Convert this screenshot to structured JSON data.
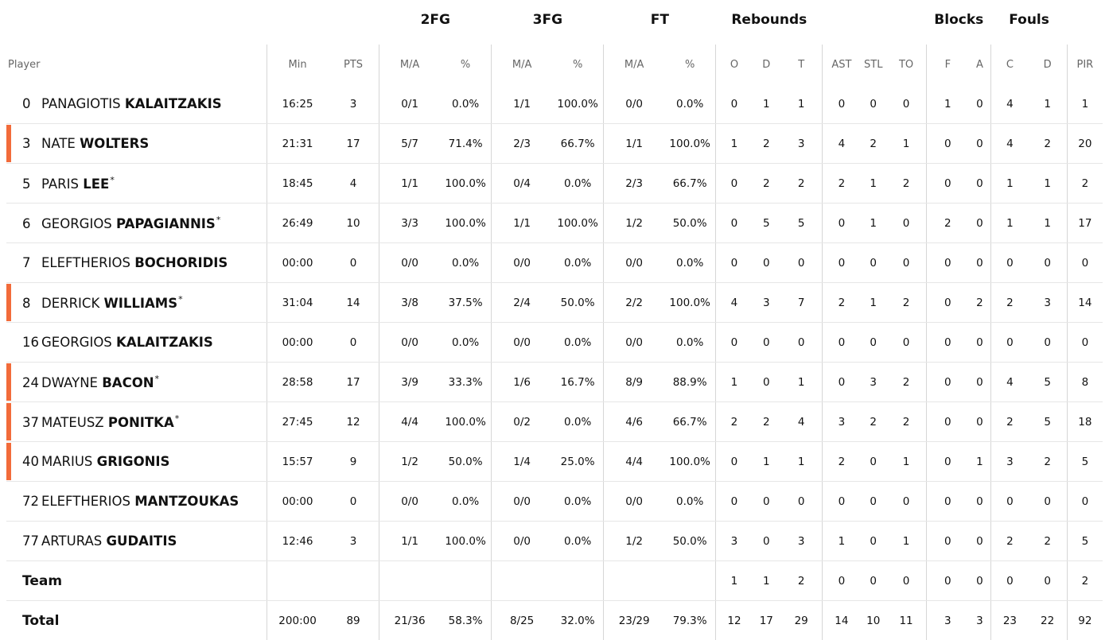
{
  "groups": {
    "fg2": "2FG",
    "fg3": "3FG",
    "ft": "FT",
    "rebounds": "Rebounds",
    "blocks": "Blocks",
    "fouls": "Fouls"
  },
  "columns": {
    "player": "Player",
    "min": "Min",
    "pts": "PTS",
    "fg2_ma": "M/A",
    "fg2_pct": "%",
    "fg3_ma": "M/A",
    "fg3_pct": "%",
    "ft_ma": "M/A",
    "ft_pct": "%",
    "reb_o": "O",
    "reb_d": "D",
    "reb_t": "T",
    "ast": "AST",
    "stl": "STL",
    "to": "TO",
    "blk_f": "F",
    "blk_a": "A",
    "foul_c": "C",
    "foul_d": "D",
    "pir": "PIR"
  },
  "colors": {
    "accent": "#f26b3a",
    "divider": "#d6d6d6",
    "row_line": "#e6e6e6"
  },
  "players": [
    {
      "num": "0",
      "first": "PANAGIOTIS",
      "last": "KALAITZAKIS",
      "star": "",
      "marked": false,
      "min": "16:25",
      "pts": "3",
      "fg2_ma": "0/1",
      "fg2_pct": "0.0%",
      "fg3_ma": "1/1",
      "fg3_pct": "100.0%",
      "ft_ma": "0/0",
      "ft_pct": "0.0%",
      "reb_o": "0",
      "reb_d": "1",
      "reb_t": "1",
      "ast": "0",
      "stl": "0",
      "to": "0",
      "blk_f": "1",
      "blk_a": "0",
      "foul_c": "4",
      "foul_d": "1",
      "pir": "1"
    },
    {
      "num": "3",
      "first": "NATE",
      "last": "WOLTERS",
      "star": "",
      "marked": true,
      "min": "21:31",
      "pts": "17",
      "fg2_ma": "5/7",
      "fg2_pct": "71.4%",
      "fg3_ma": "2/3",
      "fg3_pct": "66.7%",
      "ft_ma": "1/1",
      "ft_pct": "100.0%",
      "reb_o": "1",
      "reb_d": "2",
      "reb_t": "3",
      "ast": "4",
      "stl": "2",
      "to": "1",
      "blk_f": "0",
      "blk_a": "0",
      "foul_c": "4",
      "foul_d": "2",
      "pir": "20"
    },
    {
      "num": "5",
      "first": "PARIS",
      "last": "LEE",
      "star": "*",
      "marked": false,
      "min": "18:45",
      "pts": "4",
      "fg2_ma": "1/1",
      "fg2_pct": "100.0%",
      "fg3_ma": "0/4",
      "fg3_pct": "0.0%",
      "ft_ma": "2/3",
      "ft_pct": "66.7%",
      "reb_o": "0",
      "reb_d": "2",
      "reb_t": "2",
      "ast": "2",
      "stl": "1",
      "to": "2",
      "blk_f": "0",
      "blk_a": "0",
      "foul_c": "1",
      "foul_d": "1",
      "pir": "2"
    },
    {
      "num": "6",
      "first": "GEORGIOS",
      "last": "PAPAGIANNIS",
      "star": "*",
      "marked": false,
      "min": "26:49",
      "pts": "10",
      "fg2_ma": "3/3",
      "fg2_pct": "100.0%",
      "fg3_ma": "1/1",
      "fg3_pct": "100.0%",
      "ft_ma": "1/2",
      "ft_pct": "50.0%",
      "reb_o": "0",
      "reb_d": "5",
      "reb_t": "5",
      "ast": "0",
      "stl": "1",
      "to": "0",
      "blk_f": "2",
      "blk_a": "0",
      "foul_c": "1",
      "foul_d": "1",
      "pir": "17"
    },
    {
      "num": "7",
      "first": "ELEFTHERIOS",
      "last": "BOCHORIDIS",
      "star": "",
      "marked": false,
      "min": "00:00",
      "pts": "0",
      "fg2_ma": "0/0",
      "fg2_pct": "0.0%",
      "fg3_ma": "0/0",
      "fg3_pct": "0.0%",
      "ft_ma": "0/0",
      "ft_pct": "0.0%",
      "reb_o": "0",
      "reb_d": "0",
      "reb_t": "0",
      "ast": "0",
      "stl": "0",
      "to": "0",
      "blk_f": "0",
      "blk_a": "0",
      "foul_c": "0",
      "foul_d": "0",
      "pir": "0"
    },
    {
      "num": "8",
      "first": "DERRICK",
      "last": "WILLIAMS",
      "star": "*",
      "marked": true,
      "min": "31:04",
      "pts": "14",
      "fg2_ma": "3/8",
      "fg2_pct": "37.5%",
      "fg3_ma": "2/4",
      "fg3_pct": "50.0%",
      "ft_ma": "2/2",
      "ft_pct": "100.0%",
      "reb_o": "4",
      "reb_d": "3",
      "reb_t": "7",
      "ast": "2",
      "stl": "1",
      "to": "2",
      "blk_f": "0",
      "blk_a": "2",
      "foul_c": "2",
      "foul_d": "3",
      "pir": "14"
    },
    {
      "num": "16",
      "first": "GEORGIOS",
      "last": "KALAITZAKIS",
      "star": "",
      "marked": false,
      "min": "00:00",
      "pts": "0",
      "fg2_ma": "0/0",
      "fg2_pct": "0.0%",
      "fg3_ma": "0/0",
      "fg3_pct": "0.0%",
      "ft_ma": "0/0",
      "ft_pct": "0.0%",
      "reb_o": "0",
      "reb_d": "0",
      "reb_t": "0",
      "ast": "0",
      "stl": "0",
      "to": "0",
      "blk_f": "0",
      "blk_a": "0",
      "foul_c": "0",
      "foul_d": "0",
      "pir": "0"
    },
    {
      "num": "24",
      "first": "DWAYNE",
      "last": "BACON",
      "star": "*",
      "marked": true,
      "min": "28:58",
      "pts": "17",
      "fg2_ma": "3/9",
      "fg2_pct": "33.3%",
      "fg3_ma": "1/6",
      "fg3_pct": "16.7%",
      "ft_ma": "8/9",
      "ft_pct": "88.9%",
      "reb_o": "1",
      "reb_d": "0",
      "reb_t": "1",
      "ast": "0",
      "stl": "3",
      "to": "2",
      "blk_f": "0",
      "blk_a": "0",
      "foul_c": "4",
      "foul_d": "5",
      "pir": "8"
    },
    {
      "num": "37",
      "first": "MATEUSZ",
      "last": "PONITKA",
      "star": "*",
      "marked": true,
      "min": "27:45",
      "pts": "12",
      "fg2_ma": "4/4",
      "fg2_pct": "100.0%",
      "fg3_ma": "0/2",
      "fg3_pct": "0.0%",
      "ft_ma": "4/6",
      "ft_pct": "66.7%",
      "reb_o": "2",
      "reb_d": "2",
      "reb_t": "4",
      "ast": "3",
      "stl": "2",
      "to": "2",
      "blk_f": "0",
      "blk_a": "0",
      "foul_c": "2",
      "foul_d": "5",
      "pir": "18"
    },
    {
      "num": "40",
      "first": "MARIUS",
      "last": "GRIGONIS",
      "star": "",
      "marked": true,
      "min": "15:57",
      "pts": "9",
      "fg2_ma": "1/2",
      "fg2_pct": "50.0%",
      "fg3_ma": "1/4",
      "fg3_pct": "25.0%",
      "ft_ma": "4/4",
      "ft_pct": "100.0%",
      "reb_o": "0",
      "reb_d": "1",
      "reb_t": "1",
      "ast": "2",
      "stl": "0",
      "to": "1",
      "blk_f": "0",
      "blk_a": "1",
      "foul_c": "3",
      "foul_d": "2",
      "pir": "5"
    },
    {
      "num": "72",
      "first": "ELEFTHERIOS",
      "last": "MANTZOUKAS",
      "star": "",
      "marked": false,
      "min": "00:00",
      "pts": "0",
      "fg2_ma": "0/0",
      "fg2_pct": "0.0%",
      "fg3_ma": "0/0",
      "fg3_pct": "0.0%",
      "ft_ma": "0/0",
      "ft_pct": "0.0%",
      "reb_o": "0",
      "reb_d": "0",
      "reb_t": "0",
      "ast": "0",
      "stl": "0",
      "to": "0",
      "blk_f": "0",
      "blk_a": "0",
      "foul_c": "0",
      "foul_d": "0",
      "pir": "0"
    },
    {
      "num": "77",
      "first": "ARTURAS",
      "last": "GUDAITIS",
      "star": "",
      "marked": false,
      "min": "12:46",
      "pts": "3",
      "fg2_ma": "1/1",
      "fg2_pct": "100.0%",
      "fg3_ma": "0/0",
      "fg3_pct": "0.0%",
      "ft_ma": "1/2",
      "ft_pct": "50.0%",
      "reb_o": "3",
      "reb_d": "0",
      "reb_t": "3",
      "ast": "1",
      "stl": "0",
      "to": "1",
      "blk_f": "0",
      "blk_a": "0",
      "foul_c": "2",
      "foul_d": "2",
      "pir": "5"
    }
  ],
  "team": {
    "label": "Team",
    "min": "",
    "pts": "",
    "fg2_ma": "",
    "fg2_pct": "",
    "fg3_ma": "",
    "fg3_pct": "",
    "ft_ma": "",
    "ft_pct": "",
    "reb_o": "1",
    "reb_d": "1",
    "reb_t": "2",
    "ast": "0",
    "stl": "0",
    "to": "0",
    "blk_f": "0",
    "blk_a": "0",
    "foul_c": "0",
    "foul_d": "0",
    "pir": "2"
  },
  "total": {
    "label": "Total",
    "min": "200:00",
    "pts": "89",
    "fg2_ma": "21/36",
    "fg2_pct": "58.3%",
    "fg3_ma": "8/25",
    "fg3_pct": "32.0%",
    "ft_ma": "23/29",
    "ft_pct": "79.3%",
    "reb_o": "12",
    "reb_d": "17",
    "reb_t": "29",
    "ast": "14",
    "stl": "10",
    "to": "11",
    "blk_f": "3",
    "blk_a": "3",
    "foul_c": "23",
    "foul_d": "22",
    "pir": "92"
  }
}
